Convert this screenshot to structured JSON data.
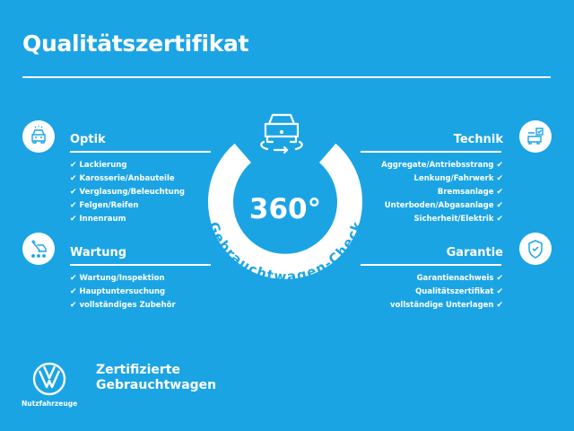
{
  "title": "Qualitätszertifikat",
  "colors": {
    "background": "#1ba4e4",
    "foreground": "#ffffff"
  },
  "check_glyph": "✔",
  "center": {
    "big": "360°",
    "arc_text": "Gebrauchtwagen-Check",
    "icon": "car-rotate-icon"
  },
  "sections": {
    "optik": {
      "heading": "Optik",
      "icon": "car-front-icon",
      "items": [
        "Lackierung",
        "Karosserie/Anbauteile",
        "Verglasung/Beleuchtung",
        "Felgen/Reifen",
        "Innenraum"
      ]
    },
    "wartung": {
      "heading": "Wartung",
      "icon": "service-tools-icon",
      "items": [
        "Wartung/Inspektion",
        "Hauptuntersuchung",
        "vollständiges Zubehör"
      ]
    },
    "technik": {
      "heading": "Technik",
      "icon": "engine-check-icon",
      "items": [
        "Aggregate/Antriebsstrang",
        "Lenkung/Fahrwerk",
        "Bremsanlage",
        "Unterboden/Abgasanlage",
        "Sicherheit/Elektrik"
      ]
    },
    "garantie": {
      "heading": "Garantie",
      "icon": "shield-check-icon",
      "items": [
        "Garantienachweis",
        "Qualitätszertifikat",
        "vollständige Unterlagen"
      ]
    }
  },
  "footer": {
    "logo_text": "Nutzfahrzeuge",
    "brand_line1": "Zertifizierte",
    "brand_line2": "Gebrauchtwagen"
  }
}
